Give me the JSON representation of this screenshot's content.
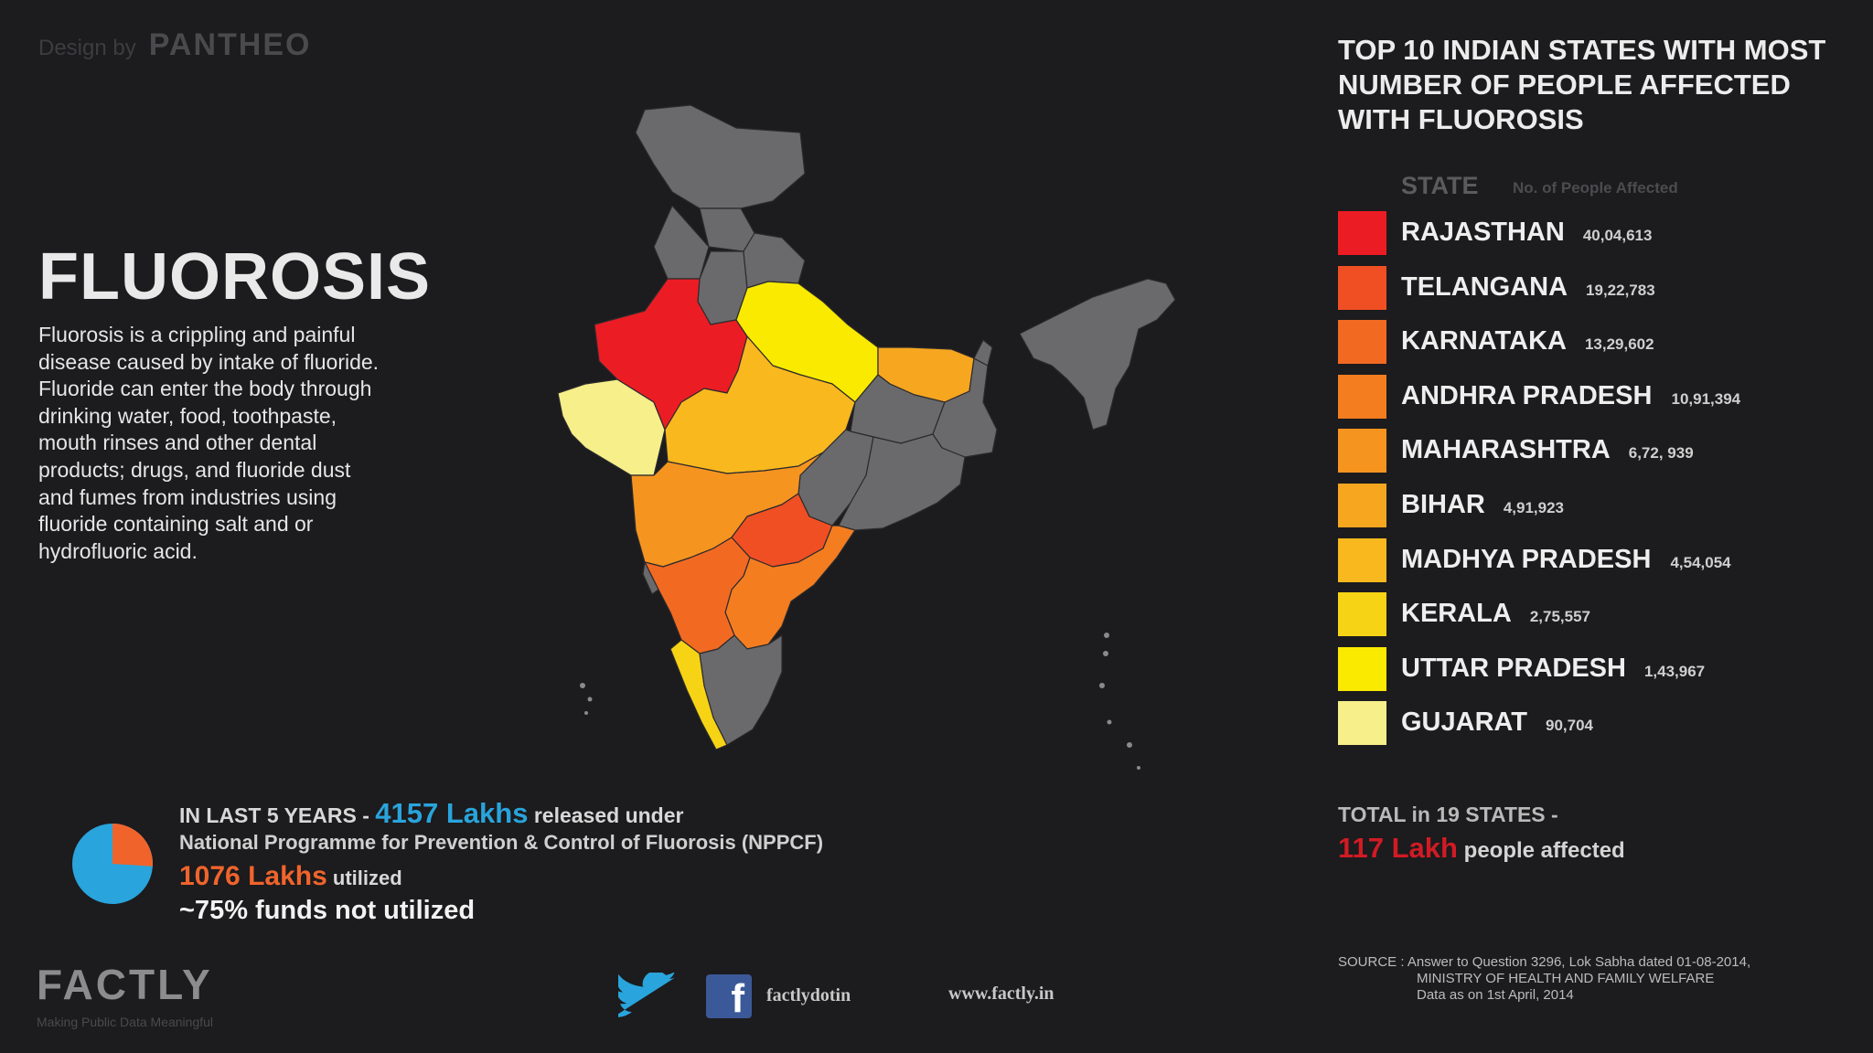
{
  "header": {
    "credit_prefix": "Design by",
    "credit_brand": "PANTHEO",
    "title": "FLUOROSIS",
    "description": "Fluorosis is a crippling and painful disease caused by intake of fluoride. Fluoride can enter the body through drinking water, food, toothpaste, mouth rinses and other dental products; drugs, and fluoride dust and fumes from industries using fluoride containing salt and or hydrofluoric acid."
  },
  "chart_data": {
    "type": "table",
    "title": "TOP 10 INDIAN STATES WITH MOST NUMBER OF PEOPLE AFFECTED WITH FLUOROSIS",
    "columns": [
      "STATE",
      "No. of People Affected"
    ],
    "categories": [
      "RAJASTHAN",
      "TELANGANA",
      "KARNATAKA",
      "ANDHRA PRADESH",
      "MAHARASHTRA",
      "BIHAR",
      "MADHYA PRADESH",
      "KERALA",
      "UTTAR PRADESH",
      "GUJARAT"
    ],
    "values": [
      4004613,
      1922783,
      1329602,
      1091394,
      672939,
      491923,
      454054,
      275557,
      143967,
      90704
    ],
    "value_labels": [
      "40,04,613",
      "19,22,783",
      "13,29,602",
      "10,91,394",
      "6,72, 939",
      "4,91,923",
      "4,54,054",
      "2,75,557",
      "1,43,967",
      "90,704"
    ],
    "colors": [
      "#ec1c24",
      "#f04f23",
      "#f26a22",
      "#f47d20",
      "#f69420",
      "#f7a61f",
      "#f9b81e",
      "#f7d315",
      "#faea00",
      "#f6ef8a"
    ]
  },
  "map": {
    "other_state_color": "#6a6a6c",
    "state_colors": {
      "rajasthan": "#ec1c24",
      "telangana": "#f04f23",
      "karnataka": "#f26a22",
      "andhra_pradesh": "#f47d20",
      "maharashtra": "#f69420",
      "bihar": "#f7a61f",
      "madhya_pradesh": "#f9b81e",
      "kerala": "#f7d315",
      "uttar_pradesh": "#faea00",
      "gujarat": "#f6ef8a"
    }
  },
  "funds": {
    "line1_prefix": "IN LAST 5 YEARS  -",
    "released": "4157 Lakhs",
    "line1_suffix": "released under",
    "line2": "National Programme for Prevention & Control of Fluorosis (NPPCF)",
    "utilized": "1076 Lakhs",
    "utilized_suffix": "utilized",
    "not_utilized": "~75% funds not utilized",
    "pie": {
      "utilized_fraction": 0.26,
      "released_color": "#29a4dc",
      "utilized_color": "#f0642c"
    }
  },
  "total": {
    "line1": "TOTAL in 19 STATES -",
    "amount": "117 Lakh",
    "suffix": "people affected"
  },
  "footer": {
    "logo": "FACTLY",
    "tagline": "Making Public Data Meaningful",
    "handle": "factlydotin",
    "website": "www.factly.in",
    "source_line1": "SOURCE : Answer to Question 3296, Lok Sabha dated 01-08-2014,",
    "source_line2": "MINISTRY OF HEALTH AND FAMILY WELFARE",
    "source_line3": "Data as on 1st April, 2014"
  }
}
